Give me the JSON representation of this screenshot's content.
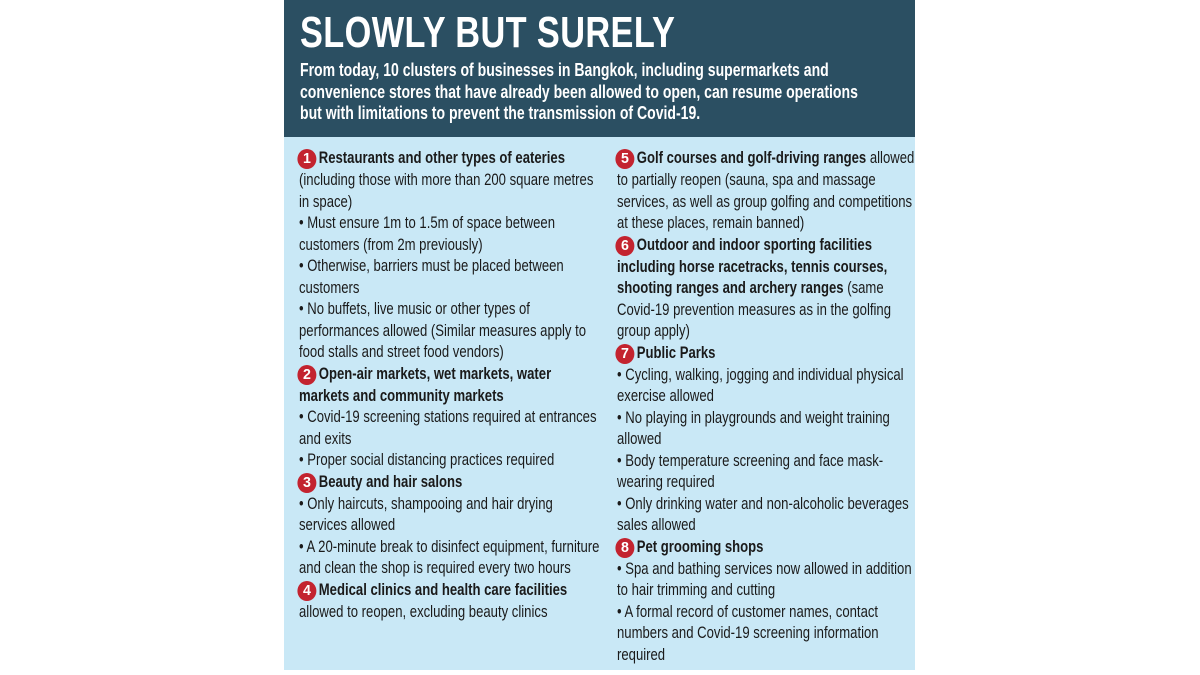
{
  "header": {
    "title": "SLOWLY BUT SURELY",
    "subtitle": "From today, 10 clusters of businesses in Bangkok, including supermarkets and convenience stores that have already been allowed to open, can resume operations but with limitations to prevent the transmission of Covid-19."
  },
  "colors": {
    "header_bg": "#2b4f62",
    "body_bg": "#c9e8f6",
    "number_badge": "#c3232f"
  },
  "left_items": [
    {
      "num": "1",
      "title": "Restaurants and other types of eateries",
      "rest": " (including those with more than 200 square metres in space)",
      "bullets": [
        "Must ensure 1m to 1.5m of space between customers (from 2m previously)",
        " Otherwise, barriers must be placed between customers",
        "No buffets, live music or other types of performances allowed (Similar measures apply to food stalls and street food vendors)"
      ]
    },
    {
      "num": "2",
      "title": "Open-air markets, wet markets, water markets and community markets",
      "rest": "",
      "bullets": [
        "Covid-19 screening stations required at entrances and exits",
        "Proper social distancing practices required"
      ]
    },
    {
      "num": "3",
      "title": "Beauty and hair salons",
      "rest": "",
      "bullets": [
        "Only haircuts, shampooing and hair drying services allowed",
        "A 20-minute break to disinfect equipment, furniture and clean the shop is required every two hours"
      ]
    },
    {
      "num": "4",
      "title": "Medical clinics and health care facilities",
      "rest": " allowed to reopen, excluding beauty clinics",
      "bullets": []
    }
  ],
  "right_items": [
    {
      "num": "5",
      "title": "Golf courses and golf-driving ranges",
      "rest": " allowed to partially reopen (sauna, spa and massage services, as well as group golfing and competitions at these places, remain banned)",
      "bullets": []
    },
    {
      "num": "6",
      "title": "Outdoor and indoor sporting facilities including horse racetracks, tennis courses, shooting ranges and archery ranges",
      "rest": " (same Covid-19 prevention measures as in the golfing group apply)",
      "bullets": []
    },
    {
      "num": "7",
      "title": "Public Parks",
      "rest": "",
      "bullets": [
        "Cycling, walking, jogging and individual physical exercise allowed",
        "No playing in playgrounds and weight training allowed",
        "Body temperature screening and face mask-wearing required",
        "Only drinking water and non-alcoholic beverages sales allowed"
      ]
    },
    {
      "num": "8",
      "title": "Pet grooming shops",
      "rest": "",
      "bullets": [
        "Spa and bathing services now allowed in addition to hair trimming and cutting",
        "A formal record of customer names, contact numbers and Covid-19 screening information required"
      ]
    }
  ]
}
